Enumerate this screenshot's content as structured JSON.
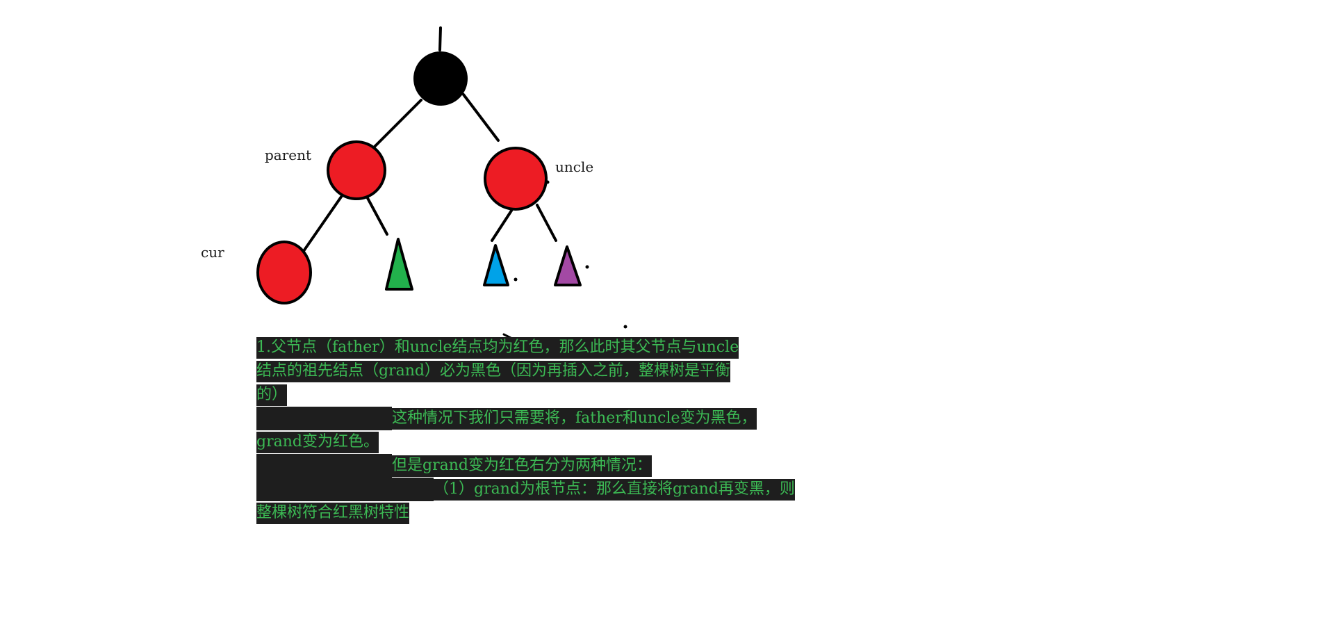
{
  "labels": {
    "parent": "parent",
    "uncle": "uncle",
    "cur": "cur"
  },
  "colors": {
    "grand": "#000000",
    "parent": "#ed1c24",
    "uncle": "#ed1c24",
    "cur": "#ed1c24",
    "subtree_green": "#22b14c",
    "subtree_blue": "#00a2e8",
    "subtree_purple": "#a349a4",
    "text": "#3cba54",
    "highlight_bg": "#1e1e1e"
  },
  "text_block": {
    "line1": "1.父节点（father）和uncle结点均为红色，那么此时其父节点与uncle",
    "line2": "结点的祖先结点（grand）必为黑色（因为再插入之前，整棵树是平衡",
    "line3": "的）",
    "line4": "这种情况下我们只需要将，father和uncle变为黑色，",
    "line5": "grand变为红色。",
    "line6": "但是grand变为红色右分为两种情况：",
    "line7": "（1）grand为根节点：那么直接将grand再变黑，则",
    "line8": "整棵树符合红黑树特性"
  }
}
